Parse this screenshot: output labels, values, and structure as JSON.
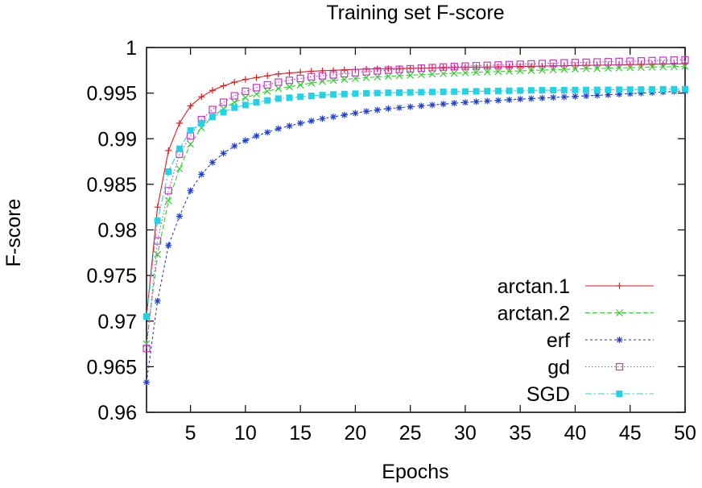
{
  "chart_data": {
    "type": "line",
    "title": "Training set F-score",
    "xlabel": "Epochs",
    "ylabel": "F-score",
    "xlim": [
      1,
      50
    ],
    "ylim": [
      0.96,
      1.0
    ],
    "xticks": [
      5,
      10,
      15,
      20,
      25,
      30,
      35,
      40,
      45,
      50
    ],
    "yticks": [
      0.96,
      0.965,
      0.97,
      0.975,
      0.98,
      0.985,
      0.99,
      0.995,
      1
    ],
    "ytick_labels": [
      "0.96",
      "0.965",
      "0.97",
      "0.975",
      "0.98",
      "0.985",
      "0.99",
      "0.995",
      "1"
    ],
    "grid": false,
    "legend_position": "bottom-right",
    "x": [
      1,
      2,
      3,
      4,
      5,
      6,
      7,
      8,
      9,
      10,
      11,
      12,
      13,
      14,
      15,
      16,
      17,
      18,
      19,
      20,
      21,
      22,
      23,
      24,
      25,
      26,
      27,
      28,
      29,
      30,
      31,
      32,
      33,
      34,
      35,
      36,
      37,
      38,
      39,
      40,
      41,
      42,
      43,
      44,
      45,
      46,
      47,
      48,
      49,
      50
    ],
    "series": [
      {
        "name": "arctan.1",
        "color": "#e41a1c",
        "marker": "plus",
        "values": [
          0.9705,
          0.9825,
          0.9887,
          0.9917,
          0.9936,
          0.9946,
          0.9953,
          0.9958,
          0.9962,
          0.9965,
          0.9967,
          0.9969,
          0.9971,
          0.9972,
          0.9973,
          0.9974,
          0.99745,
          0.9975,
          0.99755,
          0.9976,
          0.99763,
          0.99766,
          0.99768,
          0.9977,
          0.99772,
          0.99774,
          0.99776,
          0.99778,
          0.9978,
          0.99782,
          0.99784,
          0.99786,
          0.99788,
          0.9979,
          0.99792,
          0.99794,
          0.99796,
          0.99798,
          0.998,
          0.99802,
          0.99804,
          0.99806,
          0.99808,
          0.9981,
          0.99812,
          0.99814,
          0.99816,
          0.99818,
          0.9982,
          0.99822
        ]
      },
      {
        "name": "arctan.2",
        "color": "#33cc33",
        "marker": "x",
        "values": [
          0.9675,
          0.9773,
          0.9832,
          0.9867,
          0.9894,
          0.9912,
          0.9924,
          0.9933,
          0.994,
          0.9945,
          0.9949,
          0.9952,
          0.9955,
          0.9957,
          0.9959,
          0.9961,
          0.9963,
          0.9964,
          0.9965,
          0.9966,
          0.9967,
          0.99677,
          0.99684,
          0.9969,
          0.99696,
          0.99702,
          0.99708,
          0.99713,
          0.99718,
          0.99723,
          0.99728,
          0.99732,
          0.99736,
          0.9974,
          0.99744,
          0.99748,
          0.99752,
          0.99756,
          0.9976,
          0.99764,
          0.99767,
          0.9977,
          0.99773,
          0.99776,
          0.99779,
          0.99782,
          0.99785,
          0.99788,
          0.99791,
          0.99794
        ]
      },
      {
        "name": "erf",
        "color": "#1f3fcc",
        "marker": "star",
        "values": [
          0.9633,
          0.9722,
          0.9783,
          0.9815,
          0.9843,
          0.9861,
          0.9874,
          0.9884,
          0.9892,
          0.9898,
          0.9903,
          0.9907,
          0.9911,
          0.9914,
          0.9917,
          0.99195,
          0.9922,
          0.9924,
          0.9926,
          0.9928,
          0.993,
          0.99315,
          0.9933,
          0.9934,
          0.9935,
          0.9936,
          0.9937,
          0.9938,
          0.9939,
          0.99398,
          0.99406,
          0.99413,
          0.9942,
          0.99427,
          0.99434,
          0.9944,
          0.99446,
          0.99452,
          0.99458,
          0.99464,
          0.9947,
          0.99476,
          0.99482,
          0.99488,
          0.99494,
          0.995,
          0.99506,
          0.99512,
          0.99518,
          0.99524
        ]
      },
      {
        "name": "gd",
        "color": "#cc33cc",
        "marker": "square-open",
        "values": [
          0.967,
          0.9788,
          0.9843,
          0.9883,
          0.9903,
          0.9921,
          0.9932,
          0.994,
          0.9947,
          0.9952,
          0.9956,
          0.9959,
          0.9962,
          0.9964,
          0.9966,
          0.9968,
          0.9969,
          0.997,
          0.99713,
          0.99724,
          0.99734,
          0.99744,
          0.99752,
          0.9976,
          0.99767,
          0.99774,
          0.9978,
          0.99786,
          0.99791,
          0.99796,
          0.998,
          0.99804,
          0.99808,
          0.99812,
          0.99816,
          0.9982,
          0.99824,
          0.99828,
          0.99832,
          0.99835,
          0.99838,
          0.99841,
          0.99844,
          0.99847,
          0.9985,
          0.99853,
          0.99856,
          0.99859,
          0.99862,
          0.99865
        ]
      },
      {
        "name": "SGD",
        "color": "#22d3e6",
        "marker": "square-filled",
        "values": [
          0.9705,
          0.981,
          0.9864,
          0.9889,
          0.9909,
          0.9917,
          0.9924,
          0.9929,
          0.9934,
          0.9937,
          0.994,
          0.9942,
          0.9944,
          0.9945,
          0.9946,
          0.9947,
          0.99478,
          0.99485,
          0.9949,
          0.99494,
          0.99498,
          0.99501,
          0.99504,
          0.99506,
          0.99508,
          0.9951,
          0.99512,
          0.99514,
          0.99516,
          0.99518,
          0.9952,
          0.99522,
          0.99524,
          0.99526,
          0.99528,
          0.9953,
          0.99531,
          0.99532,
          0.99533,
          0.99534,
          0.99535,
          0.99536,
          0.99537,
          0.99538,
          0.99539,
          0.9954,
          0.99541,
          0.99542,
          0.99543,
          0.99544
        ]
      }
    ]
  }
}
